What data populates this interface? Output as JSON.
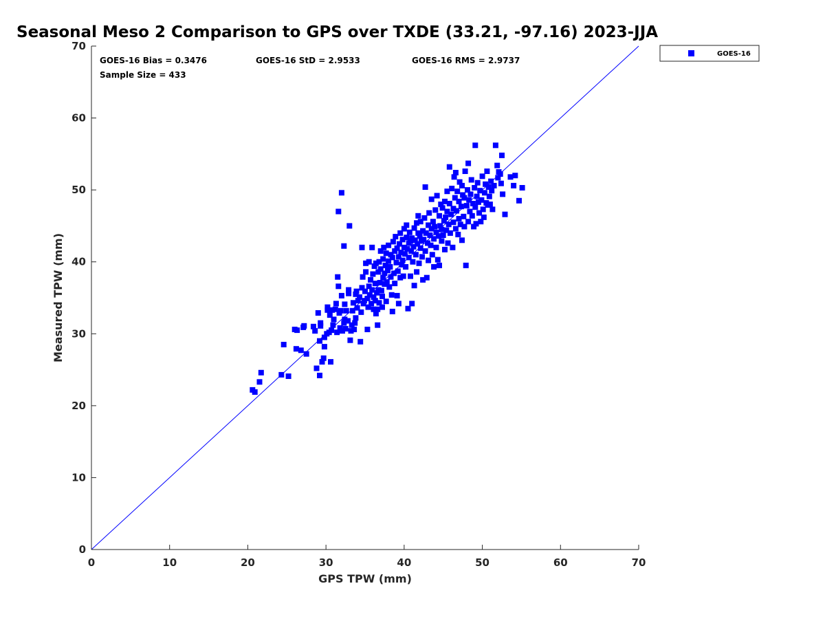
{
  "chart_data": {
    "type": "scatter",
    "title": "Seasonal Meso 2 Comparison to GPS over TXDE (33.21, -97.16) 2023-JJA",
    "xlabel": "GPS TPW (mm)",
    "ylabel": "Measured TPW (mm)",
    "xlim": [
      0,
      70
    ],
    "ylim": [
      0,
      70
    ],
    "xticks": [
      0,
      10,
      20,
      30,
      40,
      50,
      60,
      70
    ],
    "yticks": [
      0,
      10,
      20,
      30,
      40,
      50,
      60,
      70
    ],
    "grid": false,
    "legend_position": "outside-top-right",
    "reference_line": {
      "x": [
        0,
        70
      ],
      "y": [
        0,
        70
      ],
      "color": "#0000ff"
    },
    "stats": {
      "bias": "GOES-16 Bias = 0.3476",
      "std": "GOES-16 StD = 2.9533",
      "rms": "GOES-16 RMS = 2.9737",
      "sample": "Sample Size = 433"
    },
    "series": [
      {
        "name": "GOES-16",
        "color": "#0000ff",
        "marker": "square",
        "points": [
          [
            20.6,
            22.2
          ],
          [
            20.9,
            21.9
          ],
          [
            21.5,
            23.3
          ],
          [
            21.7,
            24.6
          ],
          [
            24.3,
            24.3
          ],
          [
            25.2,
            24.1
          ],
          [
            24.6,
            28.5
          ],
          [
            26.0,
            30.6
          ],
          [
            26.3,
            30.5
          ],
          [
            26.2,
            27.9
          ],
          [
            26.8,
            27.7
          ],
          [
            27.1,
            30.9
          ],
          [
            27.2,
            31.1
          ],
          [
            27.5,
            27.2
          ],
          [
            28.4,
            31.0
          ],
          [
            28.6,
            30.4
          ],
          [
            29.0,
            32.9
          ],
          [
            28.8,
            25.2
          ],
          [
            29.2,
            24.2
          ],
          [
            29.2,
            29.0
          ],
          [
            29.3,
            31.1
          ],
          [
            29.3,
            31.5
          ],
          [
            29.5,
            26.1
          ],
          [
            29.7,
            26.6
          ],
          [
            29.8,
            28.2
          ],
          [
            29.8,
            29.5
          ],
          [
            30.1,
            30.0
          ],
          [
            30.2,
            33.3
          ],
          [
            30.2,
            33.7
          ],
          [
            30.6,
            26.1
          ],
          [
            30.4,
            30.2
          ],
          [
            30.7,
            30.5
          ],
          [
            30.5,
            32.6
          ],
          [
            30.8,
            33.3
          ],
          [
            30.9,
            31.2
          ],
          [
            31.0,
            32.0
          ],
          [
            31.2,
            33.4
          ],
          [
            31.3,
            34.2
          ],
          [
            31.4,
            30.2
          ],
          [
            31.5,
            37.9
          ],
          [
            31.6,
            36.6
          ],
          [
            31.6,
            47.0
          ],
          [
            31.7,
            32.9
          ],
          [
            31.9,
            33.2
          ],
          [
            31.8,
            30.8
          ],
          [
            32.0,
            35.3
          ],
          [
            32.1,
            30.4
          ],
          [
            32.0,
            49.6
          ],
          [
            32.3,
            42.2
          ],
          [
            32.3,
            31.5
          ],
          [
            32.4,
            32.0
          ],
          [
            32.4,
            34.1
          ],
          [
            32.5,
            30.7
          ],
          [
            32.6,
            33.2
          ],
          [
            32.8,
            31.8
          ],
          [
            32.9,
            35.6
          ],
          [
            32.9,
            36.1
          ],
          [
            33.0,
            45.0
          ],
          [
            33.1,
            29.1
          ],
          [
            33.2,
            30.4
          ],
          [
            33.3,
            31.2
          ],
          [
            33.4,
            33.2
          ],
          [
            33.5,
            34.3
          ],
          [
            33.6,
            30.6
          ],
          [
            33.7,
            31.5
          ],
          [
            33.8,
            32.2
          ],
          [
            33.8,
            35.5
          ],
          [
            33.9,
            35.9
          ],
          [
            34.0,
            33.6
          ],
          [
            34.1,
            34.6
          ],
          [
            34.3,
            35.1
          ],
          [
            34.4,
            28.9
          ],
          [
            34.5,
            33.0
          ],
          [
            34.6,
            36.4
          ],
          [
            34.6,
            42.0
          ],
          [
            34.7,
            37.9
          ],
          [
            34.8,
            34.2
          ],
          [
            34.9,
            34.6
          ],
          [
            35.0,
            35.9
          ],
          [
            35.1,
            38.6
          ],
          [
            35.1,
            39.8
          ],
          [
            35.3,
            34.9
          ],
          [
            35.3,
            30.6
          ],
          [
            35.4,
            33.7
          ],
          [
            35.5,
            36.6
          ],
          [
            35.5,
            40.0
          ],
          [
            35.6,
            35.4
          ],
          [
            35.7,
            37.5
          ],
          [
            35.8,
            34.2
          ],
          [
            35.9,
            42.0
          ],
          [
            35.9,
            36.1
          ],
          [
            36.0,
            38.3
          ],
          [
            36.1,
            35.1
          ],
          [
            36.1,
            33.4
          ],
          [
            36.2,
            39.4
          ],
          [
            36.3,
            34.6
          ],
          [
            36.3,
            37.0
          ],
          [
            36.4,
            32.8
          ],
          [
            36.4,
            39.8
          ],
          [
            36.5,
            35.7
          ],
          [
            36.6,
            31.2
          ],
          [
            36.6,
            33.4
          ],
          [
            36.7,
            36.1
          ],
          [
            36.7,
            38.6
          ],
          [
            36.8,
            40.0
          ],
          [
            36.8,
            34.3
          ],
          [
            36.9,
            37.1
          ],
          [
            37.0,
            41.5
          ],
          [
            37.0,
            39.0
          ],
          [
            37.1,
            36.0
          ],
          [
            37.2,
            33.7
          ],
          [
            37.2,
            35.2
          ],
          [
            37.3,
            37.8
          ],
          [
            37.3,
            40.4
          ],
          [
            37.4,
            42.0
          ],
          [
            37.5,
            38.4
          ],
          [
            37.5,
            36.9
          ],
          [
            37.6,
            39.5
          ],
          [
            37.7,
            41.2
          ],
          [
            37.7,
            34.5
          ],
          [
            37.8,
            37.2
          ],
          [
            37.9,
            38.8
          ],
          [
            38.0,
            40.1
          ],
          [
            38.0,
            42.3
          ],
          [
            38.1,
            36.5
          ],
          [
            38.2,
            39.3
          ],
          [
            38.3,
            41.0
          ],
          [
            38.3,
            37.9
          ],
          [
            38.4,
            35.4
          ],
          [
            38.5,
            40.6
          ],
          [
            38.5,
            33.1
          ],
          [
            38.6,
            42.8
          ],
          [
            38.7,
            38.4
          ],
          [
            38.8,
            41.5
          ],
          [
            38.8,
            37.0
          ],
          [
            38.9,
            43.5
          ],
          [
            39.0,
            39.9
          ],
          [
            39.1,
            41.9
          ],
          [
            39.1,
            35.3
          ],
          [
            39.2,
            38.7
          ],
          [
            39.3,
            40.7
          ],
          [
            39.3,
            34.2
          ],
          [
            39.4,
            42.5
          ],
          [
            39.5,
            44.0
          ],
          [
            39.5,
            37.8
          ],
          [
            39.6,
            41.3
          ],
          [
            39.7,
            39.6
          ],
          [
            39.8,
            43.1
          ],
          [
            39.8,
            40.2
          ],
          [
            39.9,
            38.0
          ],
          [
            40.0,
            42.0
          ],
          [
            40.0,
            44.6
          ],
          [
            40.1,
            41.1
          ],
          [
            40.2,
            39.3
          ],
          [
            40.3,
            43.4
          ],
          [
            40.3,
            45.1
          ],
          [
            40.4,
            41.8
          ],
          [
            40.5,
            33.5
          ],
          [
            40.6,
            42.6
          ],
          [
            40.6,
            40.6
          ],
          [
            40.7,
            44.1
          ],
          [
            40.8,
            38.0
          ],
          [
            40.8,
            42.9
          ],
          [
            40.9,
            41.5
          ],
          [
            41.0,
            34.2
          ],
          [
            41.0,
            43.3
          ],
          [
            41.1,
            40.0
          ],
          [
            41.2,
            42.1
          ],
          [
            41.3,
            44.7
          ],
          [
            41.3,
            36.7
          ],
          [
            41.4,
            43.0
          ],
          [
            41.5,
            41.0
          ],
          [
            41.6,
            45.4
          ],
          [
            41.6,
            38.6
          ],
          [
            41.7,
            42.5
          ],
          [
            41.8,
            44.0
          ],
          [
            41.8,
            46.4
          ],
          [
            41.9,
            39.8
          ],
          [
            42.0,
            43.6
          ],
          [
            42.1,
            41.9
          ],
          [
            42.1,
            45.6
          ],
          [
            42.2,
            42.9
          ],
          [
            42.3,
            40.7
          ],
          [
            42.4,
            44.3
          ],
          [
            42.4,
            37.5
          ],
          [
            42.5,
            43.1
          ],
          [
            42.6,
            46.1
          ],
          [
            42.7,
            50.4
          ],
          [
            42.7,
            41.5
          ],
          [
            42.8,
            44.0
          ],
          [
            42.9,
            37.8
          ],
          [
            43.0,
            42.6
          ],
          [
            43.1,
            45.1
          ],
          [
            43.1,
            40.2
          ],
          [
            43.2,
            46.8
          ],
          [
            43.3,
            43.7
          ],
          [
            43.4,
            42.3
          ],
          [
            43.5,
            44.6
          ],
          [
            43.5,
            48.7
          ],
          [
            43.6,
            41.0
          ],
          [
            43.7,
            45.6
          ],
          [
            43.8,
            43.2
          ],
          [
            43.8,
            39.3
          ],
          [
            43.9,
            44.9
          ],
          [
            44.0,
            47.2
          ],
          [
            44.1,
            42.0
          ],
          [
            44.1,
            44.1
          ],
          [
            44.2,
            49.2
          ],
          [
            44.3,
            40.3
          ],
          [
            44.4,
            43.6
          ],
          [
            44.5,
            46.4
          ],
          [
            44.5,
            39.5
          ],
          [
            44.6,
            45.0
          ],
          [
            44.7,
            48.0
          ],
          [
            44.8,
            42.9
          ],
          [
            44.8,
            44.5
          ],
          [
            44.9,
            47.5
          ],
          [
            45.0,
            43.7
          ],
          [
            45.1,
            45.7
          ],
          [
            45.2,
            41.7
          ],
          [
            45.2,
            48.4
          ],
          [
            45.3,
            46.2
          ],
          [
            45.4,
            44.4
          ],
          [
            45.5,
            49.8
          ],
          [
            45.5,
            47.0
          ],
          [
            45.6,
            42.6
          ],
          [
            45.7,
            45.2
          ],
          [
            45.8,
            48.1
          ],
          [
            45.8,
            53.2
          ],
          [
            45.9,
            44.0
          ],
          [
            46.0,
            46.6
          ],
          [
            46.1,
            50.2
          ],
          [
            46.2,
            42.0
          ],
          [
            46.3,
            47.4
          ],
          [
            46.3,
            45.5
          ],
          [
            46.4,
            51.8
          ],
          [
            46.5,
            48.9
          ],
          [
            46.6,
            52.4
          ],
          [
            46.6,
            44.6
          ],
          [
            46.7,
            47.1
          ],
          [
            46.8,
            49.8
          ],
          [
            46.9,
            43.8
          ],
          [
            47.0,
            46.0
          ],
          [
            47.0,
            48.4
          ],
          [
            47.1,
            51.1
          ],
          [
            47.2,
            45.2
          ],
          [
            47.3,
            47.7
          ],
          [
            47.4,
            50.6
          ],
          [
            47.4,
            43.0
          ],
          [
            47.5,
            49.3
          ],
          [
            47.6,
            46.3
          ],
          [
            47.7,
            48.9
          ],
          [
            47.7,
            44.9
          ],
          [
            47.8,
            52.6
          ],
          [
            47.9,
            39.5
          ],
          [
            48.0,
            47.8
          ],
          [
            48.1,
            50.0
          ],
          [
            48.2,
            53.7
          ],
          [
            48.2,
            45.6
          ],
          [
            48.3,
            48.6
          ],
          [
            48.4,
            47.0
          ],
          [
            48.5,
            49.4
          ],
          [
            48.6,
            51.4
          ],
          [
            48.7,
            46.4
          ],
          [
            48.8,
            48.1
          ],
          [
            48.9,
            44.9
          ],
          [
            49.0,
            50.3
          ],
          [
            49.1,
            56.2
          ],
          [
            49.1,
            47.6
          ],
          [
            49.2,
            45.3
          ],
          [
            49.3,
            49.1
          ],
          [
            49.4,
            51.0
          ],
          [
            49.5,
            48.3
          ],
          [
            49.6,
            46.8
          ],
          [
            49.7,
            49.9
          ],
          [
            49.8,
            45.6
          ],
          [
            49.9,
            48.6
          ],
          [
            50.0,
            51.9
          ],
          [
            50.1,
            47.3
          ],
          [
            50.2,
            46.2
          ],
          [
            50.3,
            49.6
          ],
          [
            50.4,
            50.8
          ],
          [
            50.5,
            48.2
          ],
          [
            50.6,
            52.6
          ],
          [
            50.7,
            47.9
          ],
          [
            50.8,
            50.4
          ],
          [
            50.9,
            49.1
          ],
          [
            51.0,
            48.0
          ],
          [
            51.1,
            51.2
          ],
          [
            51.2,
            49.9
          ],
          [
            51.3,
            47.3
          ],
          [
            51.5,
            50.6
          ],
          [
            51.7,
            56.2
          ],
          [
            51.9,
            53.4
          ],
          [
            52.0,
            51.7
          ],
          [
            52.1,
            52.5
          ],
          [
            52.3,
            52.2
          ],
          [
            52.4,
            50.9
          ],
          [
            52.5,
            54.8
          ],
          [
            52.6,
            49.4
          ],
          [
            52.9,
            46.6
          ],
          [
            53.6,
            51.8
          ],
          [
            54.0,
            50.6
          ],
          [
            54.2,
            52.0
          ],
          [
            54.7,
            48.5
          ],
          [
            55.1,
            50.3
          ]
        ]
      }
    ]
  }
}
